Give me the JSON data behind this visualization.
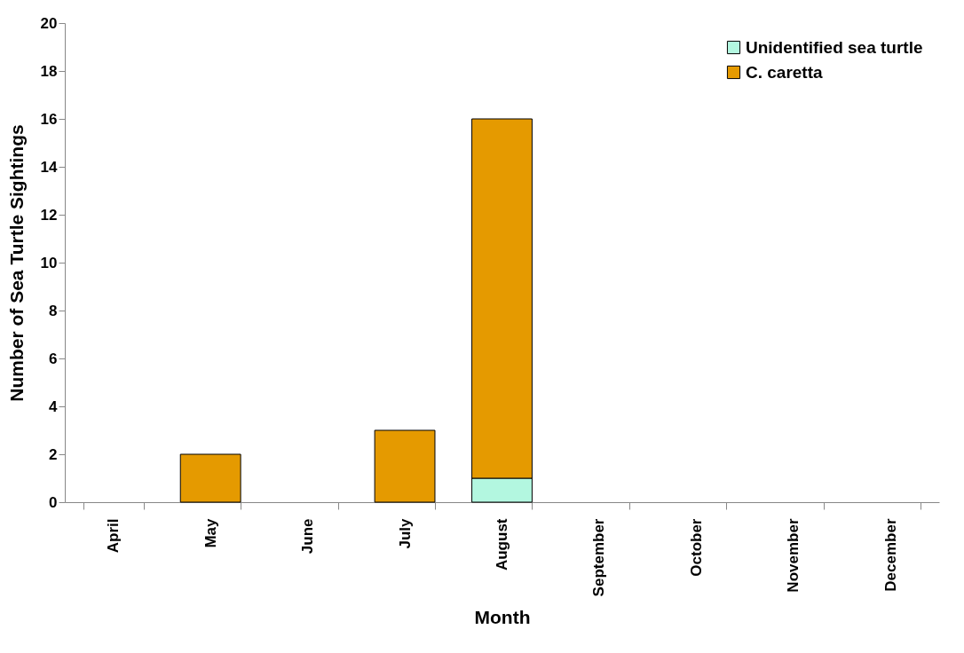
{
  "chart_data": {
    "type": "bar",
    "stacked": true,
    "xlabel": "Month",
    "ylabel": "Number of Sea Turtle Sightings",
    "categories": [
      "April",
      "May",
      "June",
      "July",
      "August",
      "September",
      "October",
      "November",
      "December"
    ],
    "series": [
      {
        "name": "Unidentified sea turtle",
        "color": "#b3f7e0",
        "values": [
          0,
          0,
          0,
          0,
          1,
          0,
          0,
          0,
          0
        ]
      },
      {
        "name": "C. caretta",
        "color": "#e59a00",
        "values": [
          0,
          2,
          0,
          3,
          15,
          0,
          0,
          0,
          0
        ]
      }
    ],
    "ylim": [
      0,
      20
    ],
    "yticks": [
      0,
      2,
      4,
      6,
      8,
      10,
      12,
      14,
      16,
      18,
      20
    ],
    "grid": false,
    "legend": "top right"
  }
}
